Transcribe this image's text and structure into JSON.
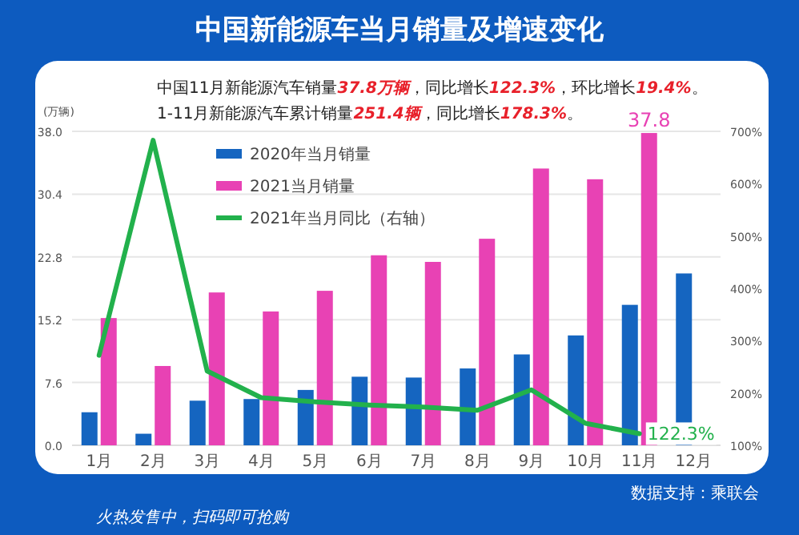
{
  "chart_data": {
    "type": "bar",
    "title": "中国新能源车当月销量及增速变化",
    "subtitle": "中国11月新能源汽车销量37.8万辆，同比增长122.3%，环比增长19.4%。",
    "annotations": [
      "1-11月新能源汽车累计销量251.4辆，同比增长178.3%。",
      "火热发售中，扫码即可抢购",
      "数据支持：乘联会"
    ],
    "ylabel": "(万辆)",
    "categories": [
      "1月",
      "2月",
      "3月",
      "4月",
      "5月",
      "6月",
      "7月",
      "8月",
      "9月",
      "10月",
      "11月",
      "12月"
    ],
    "series": [
      {
        "name": "2020年当月销量",
        "color": "#1565c0",
        "values": [
          4.0,
          1.4,
          5.4,
          5.6,
          6.7,
          8.3,
          8.2,
          9.3,
          11.0,
          13.3,
          17.0,
          20.8
        ]
      },
      {
        "name": "2021当月销量",
        "color": "#e842b4",
        "values": [
          15.4,
          9.6,
          18.5,
          16.2,
          18.7,
          23.0,
          22.2,
          25.0,
          33.5,
          32.2,
          37.8,
          null
        ],
        "value_labels": [
          null,
          null,
          null,
          null,
          null,
          null,
          null,
          null,
          null,
          null,
          "37.8",
          null
        ]
      },
      {
        "name": "2021年当月同比（右轴）",
        "type": "line",
        "axis": "y2",
        "color": "#22b14c",
        "values": [
          272,
          683,
          242,
          191,
          183,
          177,
          173,
          167,
          206,
          142,
          122.3,
          null
        ],
        "value_labels": [
          null,
          null,
          null,
          null,
          null,
          null,
          null,
          null,
          null,
          null,
          "122.3%",
          null
        ]
      }
    ],
    "ylim": [
      0,
      38
    ],
    "yticks": [
      {
        "value": 0,
        "label": "0.0"
      },
      7.6,
      15.2,
      22.8,
      30.4,
      {
        "value": 38,
        "label": "38.0"
      }
    ],
    "y2lim": [
      100,
      700
    ],
    "y2ticks": [
      {
        "value": 100,
        "label": "100%"
      },
      {
        "value": 200,
        "label": "200%"
      },
      {
        "value": 300,
        "label": "300%"
      },
      {
        "value": 400,
        "label": "400%"
      },
      {
        "value": 500,
        "label": "500%"
      },
      {
        "value": 600,
        "label": "600%"
      },
      {
        "value": 700,
        "label": "700%"
      }
    ],
    "grid": "y",
    "legend": "top left"
  }
}
